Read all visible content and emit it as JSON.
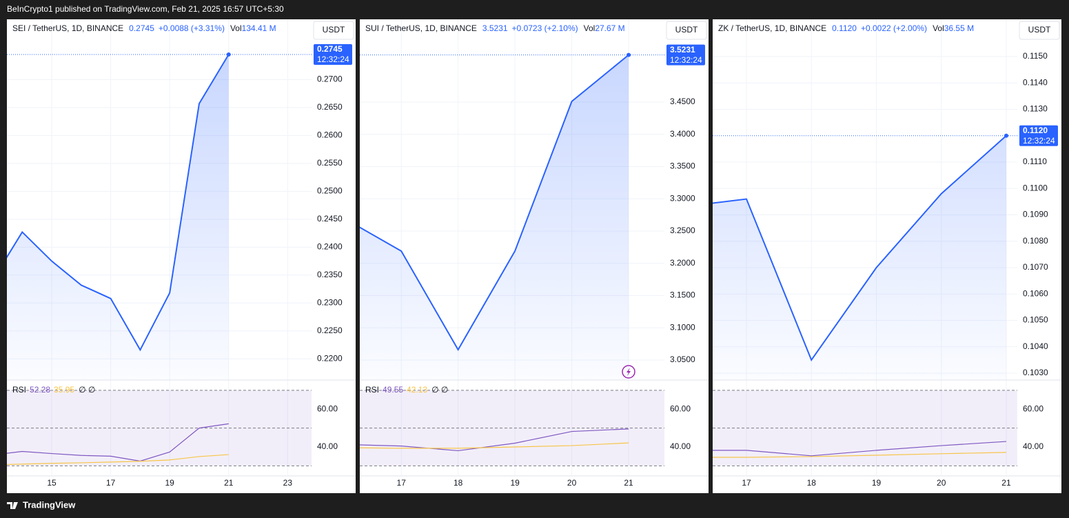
{
  "header": {
    "text": "BeInCrypto1 published on TradingView.com, Feb 21, 2025 16:57 UTC+5:30"
  },
  "footer": {
    "brand": "TradingView"
  },
  "chart_data": [
    {
      "type": "line",
      "symbol": "SEI / TetherUS, 1D, BINANCE",
      "change": "+0.0088 (+3.31%)",
      "volume_prefix": "Vol",
      "volume": "134.41 M",
      "currency": "USDT",
      "countdown": "12:32:24",
      "x": [
        13,
        14,
        15,
        16,
        17,
        18,
        19,
        20,
        21
      ],
      "xlim": [
        13.48,
        23.81
      ],
      "xticks": [
        15,
        17,
        19,
        21,
        23
      ],
      "series": [
        {
          "color": "#2962ff",
          "values": [
            0.2341,
            0.2427,
            0.2375,
            0.2332,
            0.2308,
            0.2216,
            0.2318,
            0.2657,
            0.2745
          ],
          "value_labels": [
            null,
            null,
            null,
            null,
            null,
            null,
            null,
            null,
            "0.2745"
          ]
        }
      ],
      "ylim": [
        0.2162,
        0.2808
      ],
      "yticks": [
        {
          "value": 0.22,
          "label": "0.2200"
        },
        {
          "value": 0.225,
          "label": "0.2250"
        },
        {
          "value": 0.23,
          "label": "0.2300"
        },
        {
          "value": 0.235,
          "label": "0.2350"
        },
        {
          "value": 0.24,
          "label": "0.2400"
        },
        {
          "value": 0.245,
          "label": "0.2450"
        },
        {
          "value": 0.25,
          "label": "0.2500"
        },
        {
          "value": 0.255,
          "label": "0.2550"
        },
        {
          "value": 0.26,
          "label": "0.2600"
        },
        {
          "value": 0.265,
          "label": "0.2650"
        },
        {
          "value": 0.27,
          "label": "0.2700"
        }
      ],
      "grid": true,
      "rsi": {
        "label": "RSI",
        "extra": "∅ ∅",
        "show_legend": true,
        "ylim": [
          25,
          75.45
        ],
        "yticks": [
          {
            "value": 60,
            "label": "60.00"
          },
          {
            "value": 40,
            "label": "40.00"
          }
        ],
        "levels": [
          70,
          50,
          30
        ],
        "series": [
          {
            "color": "#7e57c2",
            "values": [
              35.8,
              37.6,
              36.5,
              35.5,
              35.1,
              32.5,
              37.3,
              50.0,
              52.28
            ]
          },
          {
            "color": "#f7c548",
            "values": [
              30.5,
              30.9,
              31.3,
              31.6,
              32.0,
              32.4,
              33.1,
              34.9,
              35.95
            ]
          }
        ]
      }
    },
    {
      "type": "line",
      "symbol": "SUI / TetherUS, 1D, BINANCE",
      "change": "+0.0723 (+2.10%)",
      "volume_prefix": "Vol",
      "volume": "27.67 M",
      "currency": "USDT",
      "countdown": "12:32:24",
      "x": [
        16,
        17,
        18,
        19,
        20,
        21
      ],
      "xlim": [
        16.27,
        21.63
      ],
      "xticks": [
        17,
        18,
        19,
        20,
        21
      ],
      "series": [
        {
          "color": "#2962ff",
          "values": [
            3.2693,
            3.219,
            3.066,
            3.219,
            3.451,
            3.5231
          ],
          "value_labels": [
            null,
            null,
            null,
            null,
            null,
            "3.5231"
          ]
        }
      ],
      "ylim": [
        3.019,
        3.5783
      ],
      "yticks": [
        {
          "value": 3.05,
          "label": "3.0500"
        },
        {
          "value": 3.1,
          "label": "3.1000"
        },
        {
          "value": 3.15,
          "label": "3.1500"
        },
        {
          "value": 3.2,
          "label": "3.2000"
        },
        {
          "value": 3.25,
          "label": "3.2500"
        },
        {
          "value": 3.3,
          "label": "3.3000"
        },
        {
          "value": 3.35,
          "label": "3.3500"
        },
        {
          "value": 3.4,
          "label": "3.4000"
        },
        {
          "value": 3.45,
          "label": "3.4500"
        }
      ],
      "grid": true,
      "rsi": {
        "label": "RSI",
        "extra": "∅ ∅",
        "show_legend": true,
        "ylim": [
          25,
          75.45
        ],
        "yticks": [
          {
            "value": 60,
            "label": "60.00"
          },
          {
            "value": 40,
            "label": "40.00"
          }
        ],
        "levels": [
          70,
          50,
          30
        ],
        "series": [
          {
            "color": "#7e57c2",
            "values": [
              41.3,
              40.5,
              38.0,
              42.0,
              48.2,
              49.55
            ]
          },
          {
            "color": "#f7c548",
            "values": [
              39.6,
              39.3,
              39.3,
              40.0,
              40.7,
              42.13
            ]
          }
        ]
      }
    },
    {
      "type": "line",
      "symbol": "ZK / TetherUS, 1D, BINANCE",
      "change": "+0.0022 (+2.00%)",
      "volume_prefix": "Vol",
      "volume": "36.55 M",
      "currency": "USDT",
      "countdown": "12:32:24",
      "x": [
        16,
        17,
        18,
        19,
        20,
        21
      ],
      "xlim": [
        16.48,
        21.17
      ],
      "xticks": [
        17,
        18,
        19,
        20,
        21
      ],
      "series": [
        {
          "color": "#2962ff",
          "values": [
            0.1093,
            0.1096,
            0.1035,
            0.107,
            0.1098,
            0.112
          ],
          "value_labels": [
            null,
            null,
            null,
            null,
            null,
            "0.1120"
          ]
        }
      ],
      "ylim": [
        0.10274,
        0.11641
      ],
      "yticks": [
        {
          "value": 0.103,
          "label": "0.1030"
        },
        {
          "value": 0.104,
          "label": "0.1040"
        },
        {
          "value": 0.105,
          "label": "0.1050"
        },
        {
          "value": 0.106,
          "label": "0.1060"
        },
        {
          "value": 0.107,
          "label": "0.1070"
        },
        {
          "value": 0.108,
          "label": "0.1080"
        },
        {
          "value": 0.109,
          "label": "0.1090"
        },
        {
          "value": 0.11,
          "label": "0.1100"
        },
        {
          "value": 0.111,
          "label": "0.1110"
        },
        {
          "value": 0.113,
          "label": "0.1130"
        },
        {
          "value": 0.114,
          "label": "0.1140"
        },
        {
          "value": 0.115,
          "label": "0.1150"
        }
      ],
      "grid": true,
      "rsi": {
        "show_legend": false,
        "ylim": [
          25,
          75.45
        ],
        "yticks": [
          {
            "value": 60,
            "label": "60.00"
          },
          {
            "value": 40,
            "label": "40.00"
          }
        ],
        "levels": [
          70,
          50,
          30
        ],
        "series": [
          {
            "color": "#7e57c2",
            "values": [
              38.2,
              38.2,
              35.3,
              38.2,
              40.7,
              42.9
            ]
          },
          {
            "color": "#f7c548",
            "values": [
              34.5,
              34.5,
              34.9,
              35.6,
              36.4,
              37.1
            ]
          }
        ]
      }
    }
  ]
}
